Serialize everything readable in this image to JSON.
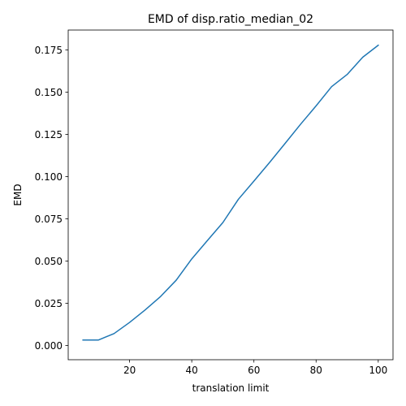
{
  "chart_data": {
    "type": "line",
    "title": "EMD of disp.ratio_median_02",
    "xlabel": "translation limit",
    "ylabel": "EMD",
    "xlim": [
      0.25,
      104.75
    ],
    "ylim": [
      -0.00838,
      0.1868
    ],
    "xticks": [
      20,
      40,
      60,
      80,
      100
    ],
    "yticks": [
      0.0,
      0.025,
      0.05,
      0.075,
      0.1,
      0.125,
      0.15,
      0.175
    ],
    "xtick_labels": [
      "20",
      "40",
      "60",
      "80",
      "100"
    ],
    "ytick_labels": [
      "0.000",
      "0.025",
      "0.050",
      "0.075",
      "0.100",
      "0.125",
      "0.150",
      "0.175"
    ],
    "grid": false,
    "line_color": "#1f77b4",
    "series": [
      {
        "x": [
          5,
          10,
          15,
          20,
          25,
          30,
          35,
          40,
          45,
          50,
          55,
          60,
          65,
          70,
          75,
          80,
          85,
          90,
          95,
          100
        ],
        "y": [
          0.0033,
          0.0033,
          0.0071,
          0.0137,
          0.0211,
          0.0291,
          0.0387,
          0.0513,
          0.0621,
          0.0728,
          0.0866,
          0.0974,
          0.1083,
          0.1196,
          0.131,
          0.1419,
          0.1533,
          0.1605,
          0.1707,
          0.1778
        ]
      }
    ]
  }
}
